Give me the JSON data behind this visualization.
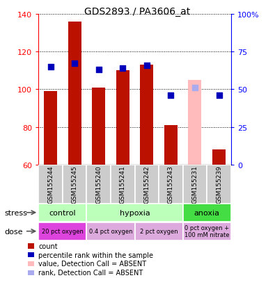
{
  "title": "GDS2893 / PA3606_at",
  "samples": [
    "GSM155244",
    "GSM155245",
    "GSM155240",
    "GSM155241",
    "GSM155242",
    "GSM155243",
    "GSM155231",
    "GSM155239"
  ],
  "count_values": [
    99,
    136,
    101,
    110,
    113,
    81,
    null,
    68
  ],
  "count_absent_values": [
    null,
    null,
    null,
    null,
    null,
    null,
    105,
    null
  ],
  "rank_pct": [
    65,
    67,
    63,
    64,
    66,
    46,
    null,
    46
  ],
  "rank_absent_pct": [
    null,
    null,
    null,
    null,
    null,
    null,
    51,
    null
  ],
  "ylim_left": [
    60,
    140
  ],
  "ylim_right": [
    0,
    100
  ],
  "yticks_left": [
    60,
    80,
    100,
    120,
    140
  ],
  "yticks_right": [
    0,
    25,
    50,
    75,
    100
  ],
  "ytick_labels_right": [
    "0",
    "25",
    "50",
    "75",
    "100%"
  ],
  "bar_color_present": "#bb1100",
  "bar_color_absent": "#ffbbbb",
  "dot_color_present": "#0000bb",
  "dot_color_absent": "#aaaaee",
  "stress_groups": [
    {
      "label": "control",
      "start": 0,
      "end": 2,
      "color": "#bbffbb"
    },
    {
      "label": "hypoxia",
      "start": 2,
      "end": 6,
      "color": "#bbffbb"
    },
    {
      "label": "anoxia",
      "start": 6,
      "end": 8,
      "color": "#44dd44"
    }
  ],
  "dose_groups": [
    {
      "label": "20 pct oxygen",
      "start": 0,
      "end": 2,
      "color": "#dd44dd"
    },
    {
      "label": "0.4 pct oxygen",
      "start": 2,
      "end": 4,
      "color": "#ddaadd"
    },
    {
      "label": "2 pct oxygen",
      "start": 4,
      "end": 6,
      "color": "#ddaadd"
    },
    {
      "label": "0 pct oxygen +\n100 mM nitrate",
      "start": 6,
      "end": 8,
      "color": "#ddaadd"
    }
  ],
  "legend_items": [
    {
      "color": "#bb1100",
      "label": "count"
    },
    {
      "color": "#0000bb",
      "label": "percentile rank within the sample"
    },
    {
      "color": "#ffbbbb",
      "label": "value, Detection Call = ABSENT"
    },
    {
      "color": "#aaaaee",
      "label": "rank, Detection Call = ABSENT"
    }
  ],
  "bar_width": 0.55,
  "dot_size": 28
}
